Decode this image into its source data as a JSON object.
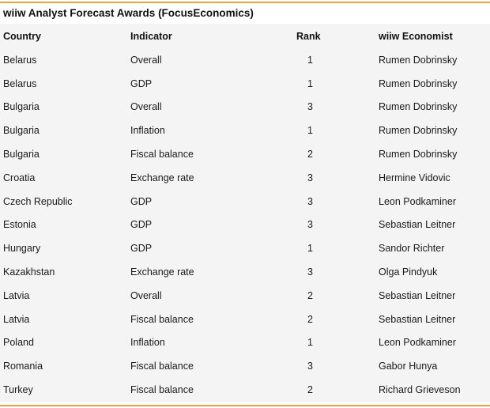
{
  "title": "wiiw Analyst Forecast Awards (FocusEconomics)",
  "accent_color": "#e8a33a",
  "table": {
    "headers": {
      "country": "Country",
      "indicator": "Indicator",
      "rank": "Rank",
      "economist": "wiiw Economist"
    },
    "rows": [
      {
        "country": "Belarus",
        "indicator": "Overall",
        "rank": "1",
        "economist": "Rumen Dobrinsky"
      },
      {
        "country": "Belarus",
        "indicator": "GDP",
        "rank": "1",
        "economist": "Rumen Dobrinsky"
      },
      {
        "country": "Bulgaria",
        "indicator": "Overall",
        "rank": "3",
        "economist": "Rumen Dobrinsky"
      },
      {
        "country": "Bulgaria",
        "indicator": "Inflation",
        "rank": "1",
        "economist": "Rumen Dobrinsky"
      },
      {
        "country": "Bulgaria",
        "indicator": "Fiscal balance",
        "rank": "2",
        "economist": "Rumen Dobrinsky"
      },
      {
        "country": "Croatia",
        "indicator": "Exchange rate",
        "rank": "3",
        "economist": "Hermine Vidovic"
      },
      {
        "country": "Czech Republic",
        "indicator": "GDP",
        "rank": "3",
        "economist": "Leon Podkaminer"
      },
      {
        "country": "Estonia",
        "indicator": "GDP",
        "rank": "3",
        "economist": "Sebastian Leitner"
      },
      {
        "country": "Hungary",
        "indicator": "GDP",
        "rank": "1",
        "economist": "Sandor Richter"
      },
      {
        "country": "Kazakhstan",
        "indicator": "Exchange rate",
        "rank": "3",
        "economist": "Olga Pindyuk"
      },
      {
        "country": "Latvia",
        "indicator": "Overall",
        "rank": "2",
        "economist": "Sebastian Leitner"
      },
      {
        "country": "Latvia",
        "indicator": "Fiscal balance",
        "rank": "2",
        "economist": "Sebastian Leitner"
      },
      {
        "country": "Poland",
        "indicator": "Inflation",
        "rank": "1",
        "economist": "Leon Podkaminer"
      },
      {
        "country": "Romania",
        "indicator": "Fiscal balance",
        "rank": "3",
        "economist": "Gabor Hunya"
      },
      {
        "country": "Turkey",
        "indicator": "Fiscal balance",
        "rank": "2",
        "economist": "Richard Grieveson"
      }
    ]
  }
}
